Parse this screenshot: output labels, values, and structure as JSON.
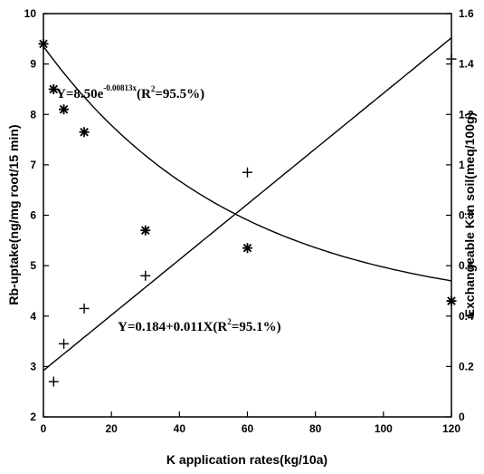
{
  "chart_data": {
    "type": "scatter",
    "xlabel": "K application rates(kg/10a)",
    "ylabel_left": "Rb-uptake(ng/mg root/15 min)",
    "ylabel_right": "Exchangeable K in soil(meq/100g)",
    "xlim": [
      0,
      120
    ],
    "ylim_left": [
      2,
      10
    ],
    "ylim_right": [
      0,
      1.6
    ],
    "x_ticks": [
      "0",
      "20",
      "40",
      "60",
      "80",
      "100",
      "120"
    ],
    "y_left_ticks": [
      "2",
      "3",
      "4",
      "5",
      "6",
      "7",
      "8",
      "9",
      "10"
    ],
    "y_right_ticks": [
      "0",
      "0.2",
      "0.4",
      "0.6",
      "0.8",
      "1",
      "1.2",
      "1.4",
      "1.6"
    ],
    "grid": false,
    "series": [
      {
        "marker": "asterisk",
        "axis": "left",
        "x": [
          0,
          3,
          6,
          12,
          30,
          60,
          120
        ],
        "y": [
          9.4,
          8.5,
          8.1,
          7.65,
          5.7,
          5.35,
          4.3
        ]
      },
      {
        "marker": "plus",
        "axis": "right",
        "x": [
          3,
          6,
          12,
          30,
          60,
          120
        ],
        "y": [
          0.14,
          0.29,
          0.43,
          0.56,
          0.97,
          1.42
        ]
      }
    ],
    "fits": [
      {
        "axis": "left",
        "kind": "exp",
        "a": 9.35,
        "b": 0.0175,
        "c": 4.05,
        "x_range": [
          0,
          120
        ]
      },
      {
        "axis": "right",
        "kind": "linear",
        "intercept": 0.184,
        "slope": 0.011,
        "x_range": [
          0,
          120
        ]
      }
    ],
    "annotations": [
      {
        "label": "Y=8.50e",
        "sup": "-0.00813x",
        "tail": "(R",
        "sup2": "2",
        "tail2": "=95.5%)"
      },
      {
        "label": "Y=0.184+0.011X(R",
        "sup": "2",
        "tail": "=95.1%)"
      }
    ]
  }
}
